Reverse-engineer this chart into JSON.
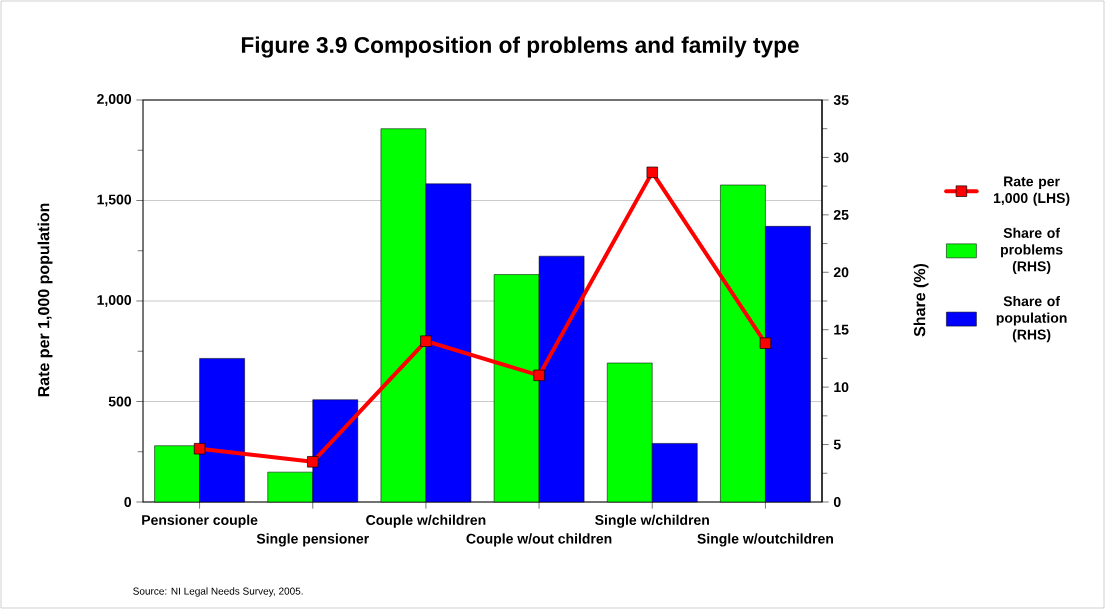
{
  "chart_data": {
    "type": "bar",
    "title": "Figure 3.9 Composition of problems and family type",
    "categories": [
      "Pensioner couple",
      "Single pensioner",
      "Couple w/children",
      "Couple w/out children",
      "Single w/children",
      "Single w/outchildren"
    ],
    "series": [
      {
        "name": "Rate per 1,000 (LHS)",
        "type": "line",
        "axis": "y",
        "color": "#ff0000",
        "values": [
          265,
          200,
          800,
          630,
          1640,
          790
        ]
      },
      {
        "name": "Share of problems (RHS)",
        "axis": "y2",
        "color": "#00ff00",
        "values": [
          4.9,
          2.6,
          32.5,
          19.8,
          12.1,
          27.6
        ]
      },
      {
        "name": "Share of population (RHS)",
        "axis": "y2",
        "color": "#0000ff",
        "values": [
          12.5,
          8.9,
          27.7,
          21.4,
          5.1,
          24.0
        ]
      }
    ],
    "ylabel": "Rate per 1,000 population",
    "y2label": "Share (%)",
    "ylim": [
      0,
      2000
    ],
    "yticks": [
      0,
      {
        "value": 250,
        "label": null
      },
      {
        "value": 500,
        "label": "500"
      },
      {
        "value": 750,
        "label": null
      },
      {
        "value": 1000,
        "label": "1,000"
      },
      {
        "value": 1250,
        "label": null
      },
      {
        "value": 1500,
        "label": "1,500"
      },
      {
        "value": 1750,
        "label": null
      },
      {
        "value": 2000,
        "label": "2,000"
      }
    ],
    "y2lim": [
      0,
      35
    ],
    "y2ticks": [
      0,
      {
        "value": 2.5,
        "label": null
      },
      5,
      {
        "value": 7.5,
        "label": null
      },
      10,
      {
        "value": 12.5,
        "label": null
      },
      15,
      {
        "value": 17.5,
        "label": null
      },
      20,
      {
        "value": 22.5,
        "label": null
      },
      25,
      {
        "value": 27.5,
        "label": null
      },
      30,
      {
        "value": 32.5,
        "label": null
      },
      35
    ],
    "grid": "y",
    "legend": "right",
    "marker": "square",
    "line_style": "solid",
    "annotations": [
      "Source: NI Legal Needs Survey, 2005."
    ]
  }
}
